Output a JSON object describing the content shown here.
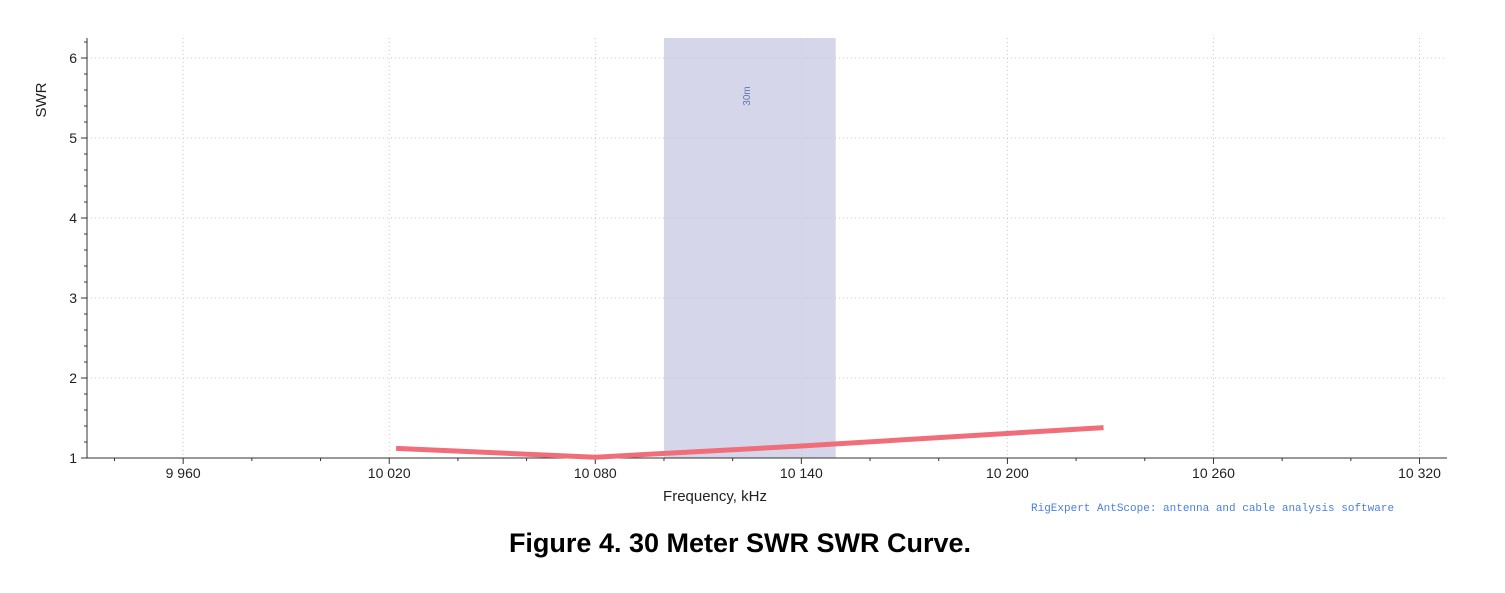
{
  "chart_data": {
    "type": "line",
    "title": "",
    "xlabel": "Frequency, kHz",
    "ylabel": "SWR",
    "xlim": [
      9932,
      10328
    ],
    "ylim": [
      1,
      6.25
    ],
    "x_ticks": [
      9960,
      10020,
      10080,
      10140,
      10200,
      10260,
      10320
    ],
    "x_tick_labels": [
      "9 960",
      "10 020",
      "10 080",
      "10 140",
      "10 200",
      "10 260",
      "10 320"
    ],
    "y_ticks": [
      1,
      2,
      3,
      4,
      5,
      6
    ],
    "y_tick_labels": [
      "1",
      "2",
      "3",
      "4",
      "5",
      "6"
    ],
    "grid": true,
    "series": [
      {
        "color": "#f06e7a",
        "x": [
          10022,
          10080,
          10140,
          10228
        ],
        "y": [
          1.12,
          1.01,
          1.15,
          1.38
        ]
      }
    ],
    "bands": [
      {
        "label": "30m",
        "x_start": 10100,
        "x_end": 10150,
        "color": "#d5d6ea"
      }
    ]
  },
  "credit": "RigExpert AntScope: antenna and cable analysis software",
  "caption": "Figure 4.  30 Meter SWR SWR Curve."
}
